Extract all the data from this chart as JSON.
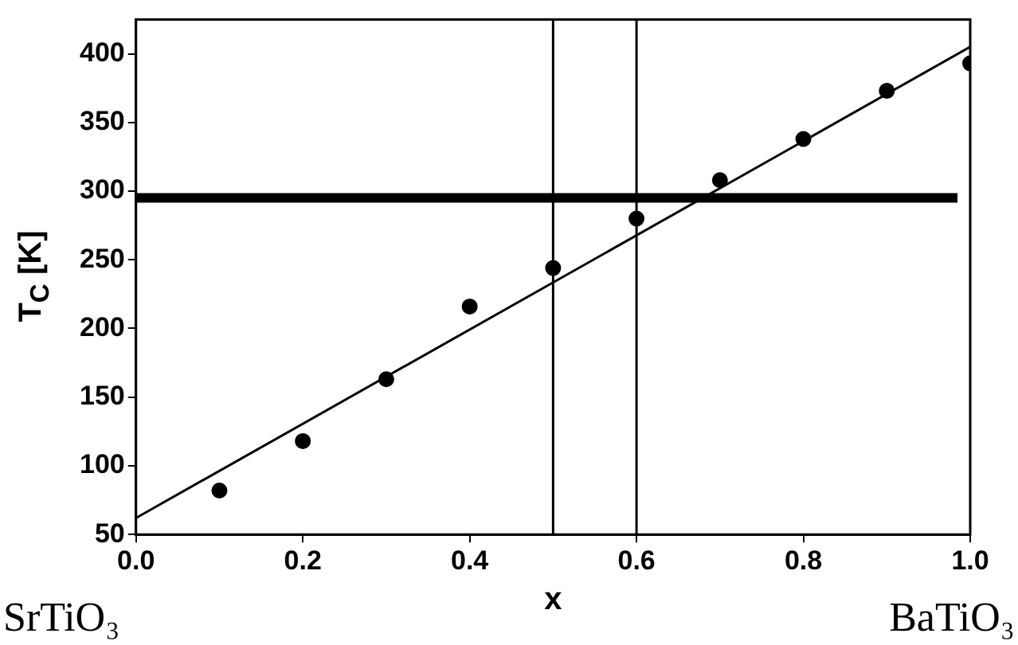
{
  "chart_data": {
    "type": "scatter",
    "xlabel": "x",
    "ylabel": "T$_{C}$ [K]",
    "x": [
      0.1,
      0.2,
      0.3,
      0.4,
      0.5,
      0.6,
      0.7,
      0.8,
      0.9,
      1.0
    ],
    "series": [
      {
        "color": "#000000",
        "marker": "circle",
        "values": [
          82,
          118,
          163,
          216,
          244,
          280,
          308,
          338,
          373,
          393
        ]
      },
      {
        "type": "line",
        "color": "#000000",
        "marker": "none",
        "x": [
          0,
          1
        ],
        "values": [
          62,
          405
        ]
      }
    ],
    "xlim": [
      0,
      1
    ],
    "xticks": [
      {
        "value": 0,
        "label": "0.0"
      },
      0.2,
      0.4,
      0.6,
      0.8,
      {
        "value": 1,
        "label": "1.0"
      }
    ],
    "ylim": [
      50,
      425
    ],
    "yticks": [
      50,
      100,
      150,
      200,
      250,
      300,
      350,
      400
    ],
    "ref_lines": [
      {
        "axis": "y",
        "value": 295,
        "color": "#000000"
      },
      {
        "axis": "x",
        "value": 0.5,
        "color": "#000000"
      },
      {
        "axis": "x",
        "value": 0.6,
        "color": "#000000"
      }
    ],
    "annotations": [
      "SrTiO₃",
      "BaTiO₃"
    ],
    "grid": false,
    "legend": false
  }
}
